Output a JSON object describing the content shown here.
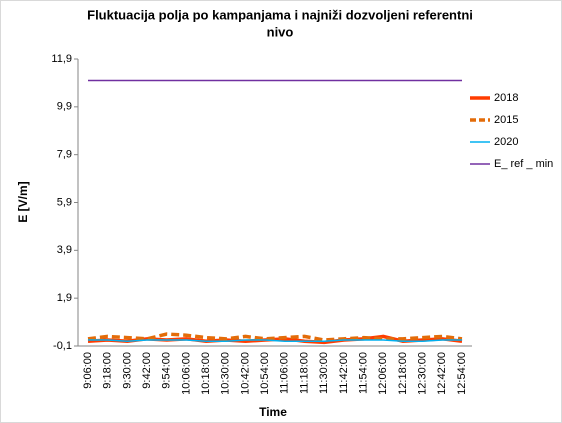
{
  "chart_data": {
    "type": "line",
    "title_lines": [
      "Fluktuacija polja po kampanjama i najniži dozvoljeni referentni",
      "nivo"
    ],
    "x_label": "Time",
    "y_label": "E [V/m]",
    "categories": [
      "9:06:00",
      "9:18:00",
      "9:30:00",
      "9:42:00",
      "9:54:00",
      "10:06:00",
      "10:18:00",
      "10:30:00",
      "10:42:00",
      "10:54:00",
      "11:06:00",
      "11:18:00",
      "11:30:00",
      "11:42:00",
      "11:54:00",
      "12:06:00",
      "12:18:00",
      "12:30:00",
      "12:42:00",
      "12:54:00"
    ],
    "series": [
      {
        "name": "2018",
        "color": "#ff3c00",
        "width": 3.5,
        "dashed": false,
        "values": [
          0.1,
          0.15,
          0.1,
          0.2,
          0.15,
          0.2,
          0.1,
          0.15,
          0.1,
          0.15,
          0.2,
          0.1,
          0.05,
          0.15,
          0.2,
          0.3,
          0.1,
          0.15,
          0.2,
          0.1
        ]
      },
      {
        "name": "2015",
        "color": "#e36c09",
        "width": 3.5,
        "dashed": true,
        "values": [
          0.2,
          0.3,
          0.25,
          0.2,
          0.4,
          0.35,
          0.25,
          0.2,
          0.3,
          0.2,
          0.25,
          0.3,
          0.15,
          0.2,
          0.25,
          0.2,
          0.2,
          0.25,
          0.3,
          0.2
        ]
      },
      {
        "name": "2020",
        "color": "#00b0f0",
        "width": 1.5,
        "dashed": false,
        "values": [
          0.15,
          0.15,
          0.1,
          0.15,
          0.15,
          0.15,
          0.1,
          0.1,
          0.15,
          0.15,
          0.1,
          0.1,
          0.1,
          0.15,
          0.15,
          0.15,
          0.1,
          0.1,
          0.15,
          0.15
        ]
      },
      {
        "name": "E_ ref _ min",
        "color": "#7030a0",
        "width": 1.5,
        "dashed": false,
        "values": [
          11.0,
          11.0,
          11.0,
          11.0,
          11.0,
          11.0,
          11.0,
          11.0,
          11.0,
          11.0,
          11.0,
          11.0,
          11.0,
          11.0,
          11.0,
          11.0,
          11.0,
          11.0,
          11.0,
          11.0
        ]
      }
    ],
    "ylim": [
      -0.1,
      11.9
    ],
    "yticks": [
      {
        "value": -0.1,
        "label": "-0,1"
      },
      {
        "value": 1.9,
        "label": "1,9"
      },
      {
        "value": 3.9,
        "label": "3,9"
      },
      {
        "value": 5.9,
        "label": "5,9"
      },
      {
        "value": 7.9,
        "label": "7,9"
      },
      {
        "value": 9.9,
        "label": "9,9"
      },
      {
        "value": 11.9,
        "label": "11,9"
      }
    ],
    "legend": "right"
  }
}
